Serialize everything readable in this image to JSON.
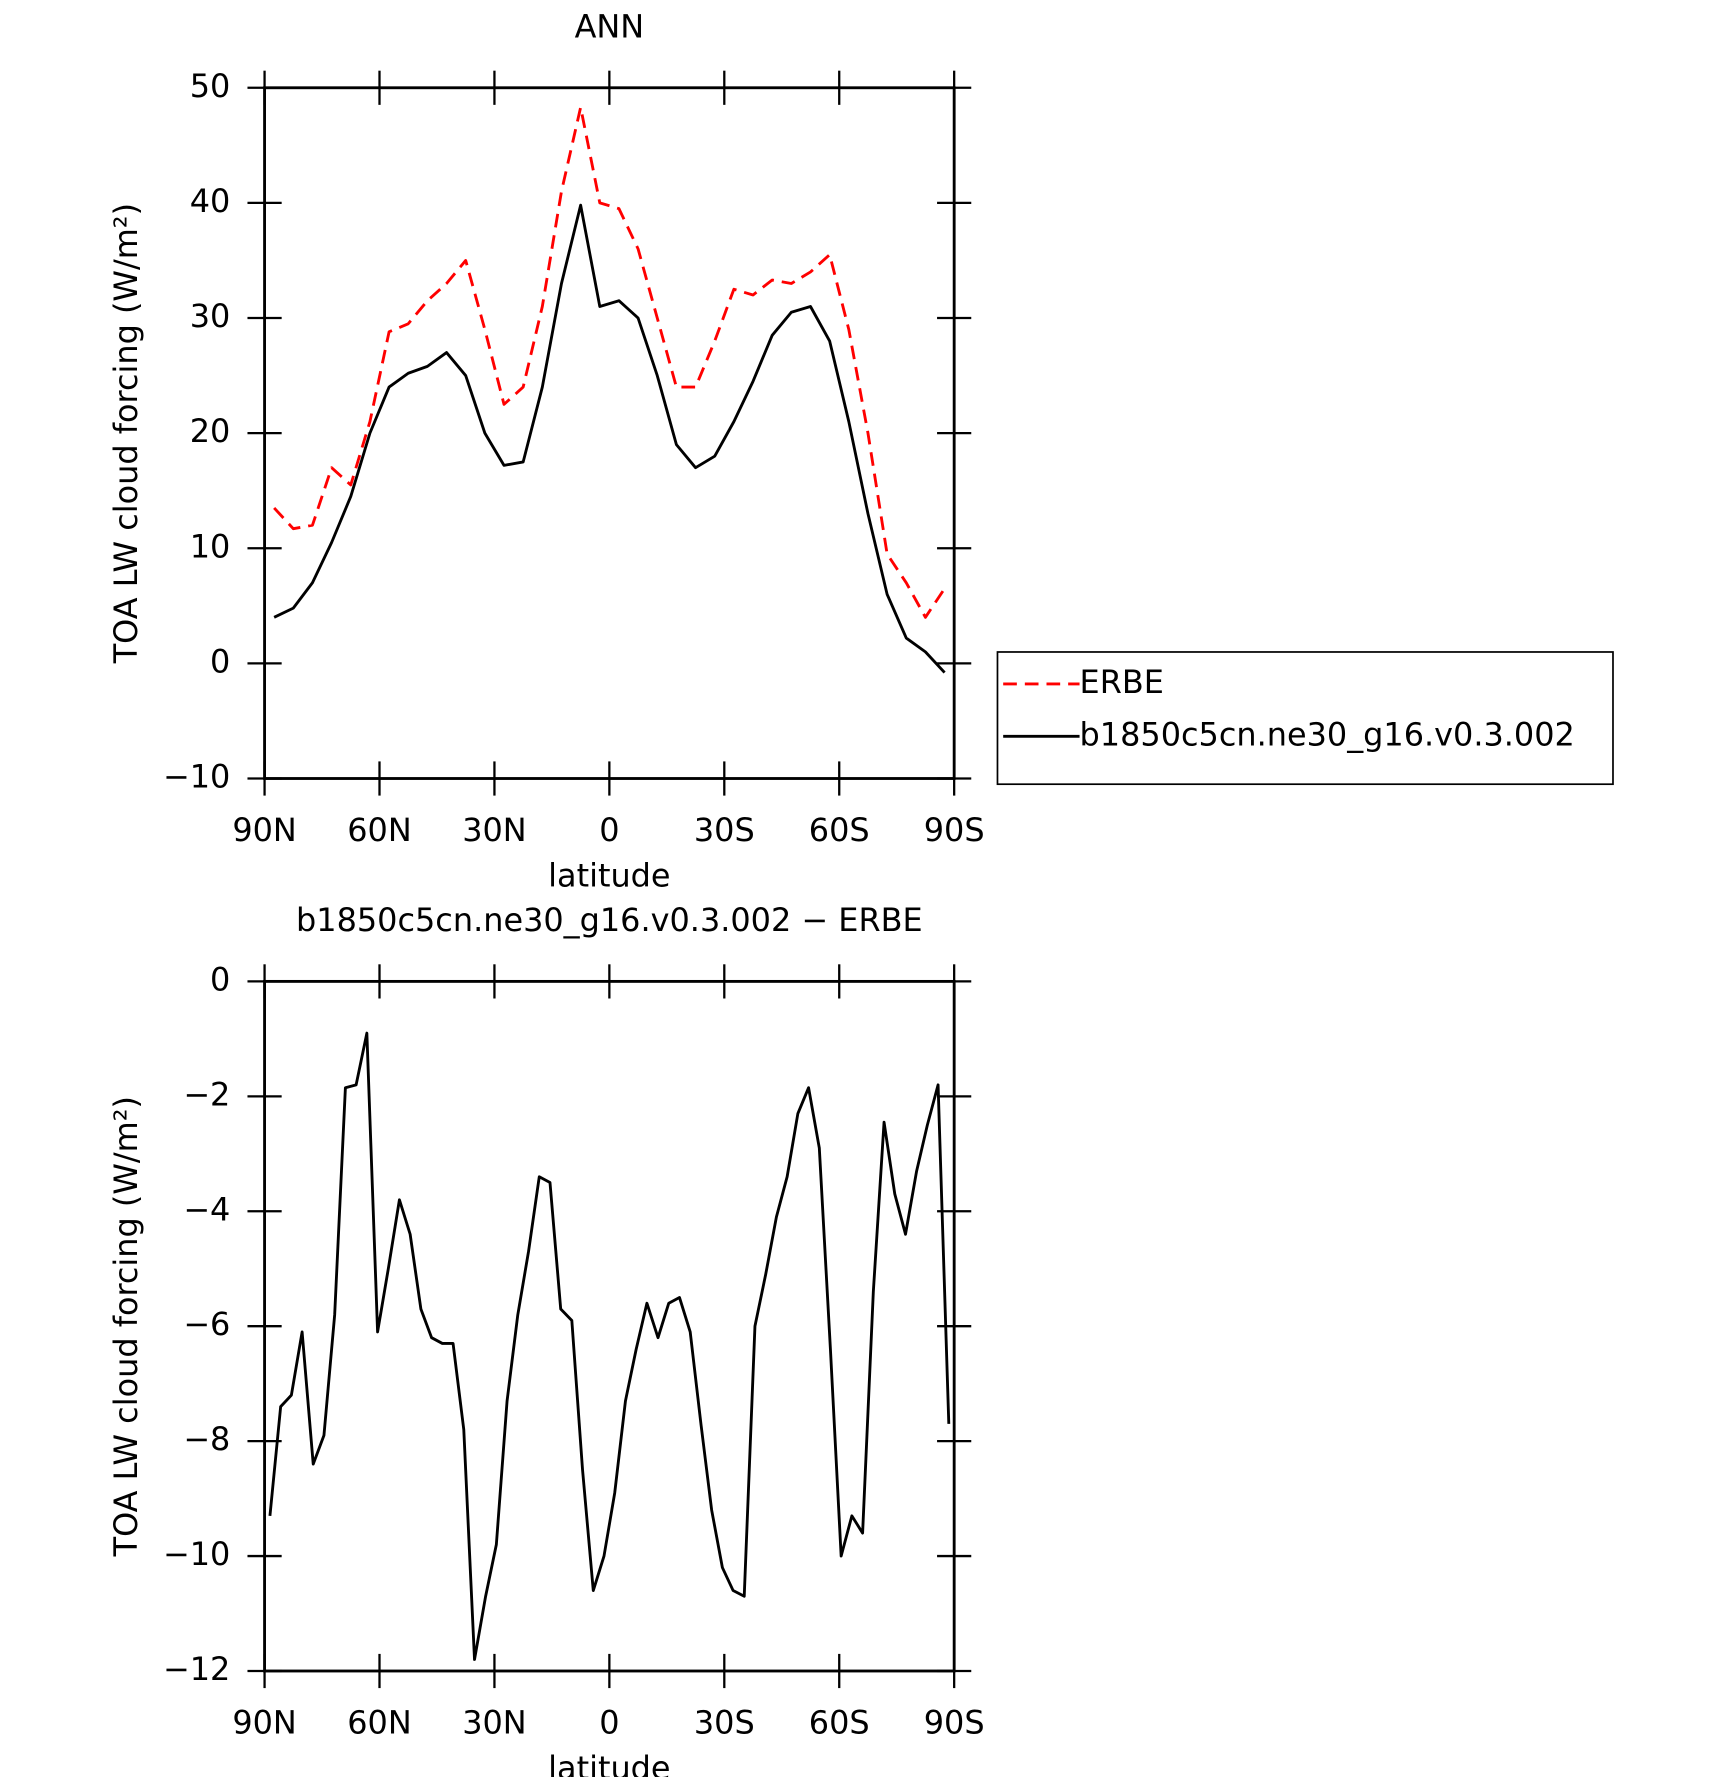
{
  "chart_data": [
    {
      "type": "line",
      "title": "ANN",
      "xlabel": "latitude",
      "ylabel": "TOA LW cloud forcing (W/m²)",
      "x": [
        87.5,
        82.5,
        77.5,
        72.5,
        67.5,
        62.5,
        57.5,
        52.5,
        47.5,
        42.5,
        37.5,
        32.5,
        27.5,
        22.5,
        17.5,
        12.5,
        7.5,
        2.5,
        -2.5,
        -7.5,
        -12.5,
        -17.5,
        -22.5,
        -27.5,
        -32.5,
        -37.5,
        -42.5,
        -47.5,
        -52.5,
        -57.5,
        -62.5,
        -67.5,
        -72.5,
        -77.5,
        -82.5,
        -87.5
      ],
      "series": [
        {
          "name": "ERBE",
          "color": "#ff0000",
          "dashed": true,
          "values": [
            13.5,
            11.7,
            12,
            17,
            15.5,
            21,
            28.8,
            29.5,
            31.5,
            33,
            35,
            29,
            22.5,
            24,
            31,
            41,
            48.3,
            40,
            39.5,
            36,
            30,
            24,
            24,
            28,
            32.5,
            32,
            33.3,
            33,
            34,
            35.5,
            29,
            20,
            9.5,
            7,
            4,
            6.5
          ]
        },
        {
          "name": "b1850c5cn.ne30_g16.v0.3.002",
          "color": "#000000",
          "dashed": false,
          "values": [
            4.0,
            4.8,
            7.0,
            10.5,
            14.5,
            20,
            24,
            25.2,
            25.8,
            27,
            25,
            20,
            17.2,
            17.5,
            24,
            33,
            39.8,
            31,
            31.5,
            30,
            25,
            19,
            17,
            18,
            21,
            24.5,
            28.5,
            30.5,
            31,
            28,
            21,
            13,
            6,
            2.2,
            1,
            -0.8
          ]
        }
      ],
      "xlim": [
        90,
        -90
      ],
      "xticks": [
        {
          "value": 90,
          "label": "90N"
        },
        {
          "value": 60,
          "label": "60N"
        },
        {
          "value": 30,
          "label": "30N"
        },
        0,
        {
          "value": -30,
          "label": "30S"
        },
        {
          "value": -60,
          "label": "60S"
        },
        {
          "value": -90,
          "label": "90S"
        }
      ],
      "ylim": [
        -10,
        50
      ],
      "yticks": [
        {
          "value": -10,
          "label": "−10"
        },
        0,
        10,
        20,
        30,
        40,
        50
      ],
      "legend": "right"
    },
    {
      "type": "line",
      "title": "b1850c5cn.ne30_g16.v0.3.002 − ERBE",
      "xlabel": "latitude",
      "ylabel": "TOA LW cloud forcing (W/m²)",
      "x": [
        88.6,
        85.8,
        83.0,
        80.2,
        77.3,
        74.5,
        71.7,
        68.9,
        66.1,
        63.3,
        60.5,
        57.7,
        54.8,
        52.0,
        49.2,
        46.4,
        43.6,
        40.8,
        38.0,
        35.2,
        32.3,
        29.5,
        26.7,
        23.9,
        21.1,
        18.3,
        15.5,
        12.7,
        9.8,
        7.0,
        4.2,
        1.4,
        -1.4,
        -4.2,
        -7.0,
        -9.8,
        -12.7,
        -15.5,
        -18.3,
        -21.1,
        -23.9,
        -26.7,
        -29.5,
        -32.3,
        -35.2,
        -38.0,
        -40.8,
        -43.6,
        -46.4,
        -49.2,
        -52.0,
        -54.8,
        -57.7,
        -60.5,
        -63.3,
        -66.1,
        -68.9,
        -71.7,
        -74.5,
        -77.3,
        -80.2,
        -83.0,
        -85.8,
        -88.6
      ],
      "series": [
        {
          "name": null,
          "color": "#000000",
          "dashed": false,
          "values": [
            -9.3,
            -7.4,
            -7.2,
            -6.1,
            -8.4,
            -7.9,
            -5.8,
            -1.85,
            -1.8,
            -0.9,
            -6.1,
            -5,
            -3.8,
            -4.4,
            -5.7,
            -6.2,
            -6.3,
            -6.3,
            -7.8,
            -11.8,
            -10.7,
            -9.8,
            -7.3,
            -5.8,
            -4.7,
            -3.4,
            -3.5,
            -5.7,
            -5.9,
            -8.5,
            -10.6,
            -10,
            -8.9,
            -7.3,
            -6.4,
            -5.6,
            -6.2,
            -5.6,
            -5.5,
            -6.1,
            -7.7,
            -9.2,
            -10.2,
            -10.6,
            -10.7,
            -6.0,
            -5.1,
            -4.1,
            -3.4,
            -2.3,
            -1.85,
            -2.9,
            -6.4,
            -10,
            -9.3,
            -9.6,
            -5.4,
            -2.45,
            -3.7,
            -4.4,
            -3.3,
            -2.5,
            -1.8,
            -7.7
          ]
        }
      ],
      "xlim": [
        90,
        -90
      ],
      "xticks": [
        {
          "value": 90,
          "label": "90N"
        },
        {
          "value": 60,
          "label": "60N"
        },
        {
          "value": 30,
          "label": "30N"
        },
        0,
        {
          "value": -30,
          "label": "30S"
        },
        {
          "value": -60,
          "label": "60S"
        },
        {
          "value": -90,
          "label": "90S"
        }
      ],
      "ylim": [
        -12,
        0
      ],
      "yticks": [
        {
          "value": -12,
          "label": "−12"
        },
        {
          "value": -10,
          "label": "−10"
        },
        {
          "value": -8,
          "label": "−8"
        },
        {
          "value": -6,
          "label": "−6"
        },
        {
          "value": -4,
          "label": "−4"
        },
        {
          "value": -2,
          "label": "−2"
        },
        0
      ]
    }
  ]
}
